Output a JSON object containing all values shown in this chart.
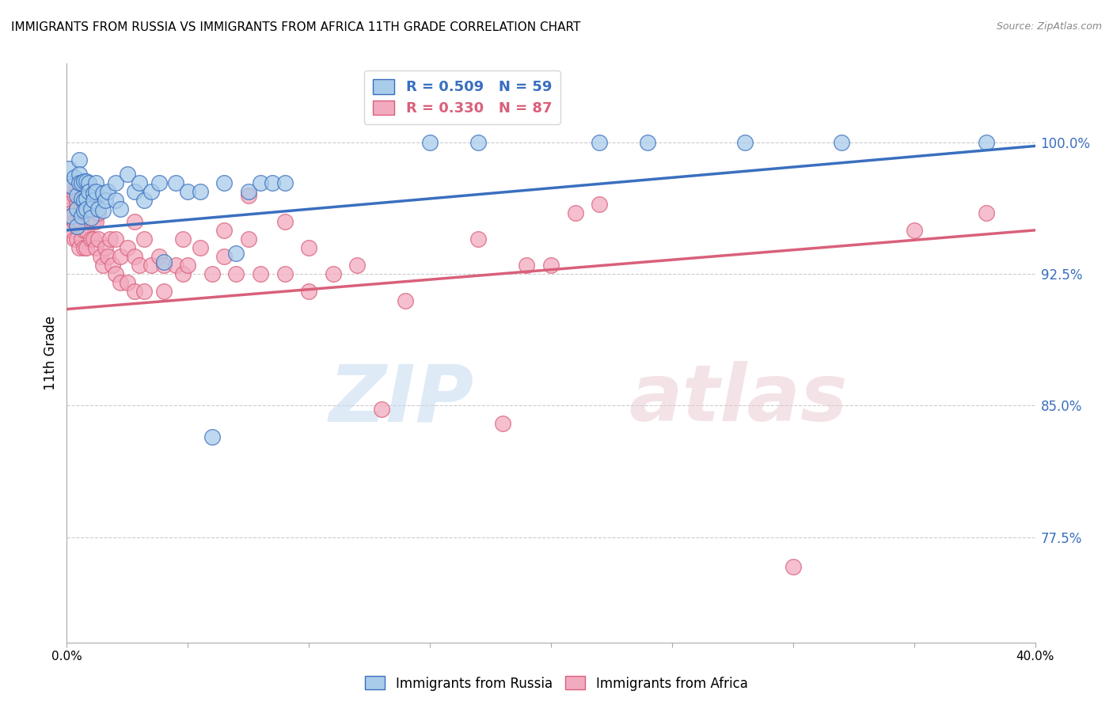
{
  "title": "IMMIGRANTS FROM RUSSIA VS IMMIGRANTS FROM AFRICA 11TH GRADE CORRELATION CHART",
  "source": "Source: ZipAtlas.com",
  "ylabel": "11th Grade",
  "ylabel_ticks": [
    "100.0%",
    "92.5%",
    "85.0%",
    "77.5%"
  ],
  "ylabel_tick_values": [
    1.0,
    0.925,
    0.85,
    0.775
  ],
  "x_min": 0.0,
  "x_max": 0.4,
  "y_min": 0.715,
  "y_max": 1.045,
  "russia_color": "#A8CCEA",
  "africa_color": "#F2AABF",
  "russia_line_color": "#3A6FBF",
  "africa_line_color": "#D9607A",
  "watermark_zip": "ZIP",
  "watermark_atlas": "atlas",
  "russia_scatter": [
    [
      0.001,
      0.985
    ],
    [
      0.002,
      0.975
    ],
    [
      0.002,
      0.958
    ],
    [
      0.003,
      0.98
    ],
    [
      0.004,
      0.97
    ],
    [
      0.004,
      0.962
    ],
    [
      0.004,
      0.952
    ],
    [
      0.005,
      0.99
    ],
    [
      0.005,
      0.982
    ],
    [
      0.005,
      0.977
    ],
    [
      0.006,
      0.977
    ],
    [
      0.006,
      0.968
    ],
    [
      0.006,
      0.958
    ],
    [
      0.007,
      0.978
    ],
    [
      0.007,
      0.967
    ],
    [
      0.007,
      0.961
    ],
    [
      0.008,
      0.978
    ],
    [
      0.008,
      0.968
    ],
    [
      0.008,
      0.962
    ],
    [
      0.009,
      0.977
    ],
    [
      0.009,
      0.972
    ],
    [
      0.01,
      0.962
    ],
    [
      0.01,
      0.957
    ],
    [
      0.011,
      0.971
    ],
    [
      0.011,
      0.967
    ],
    [
      0.012,
      0.977
    ],
    [
      0.012,
      0.972
    ],
    [
      0.013,
      0.962
    ],
    [
      0.015,
      0.971
    ],
    [
      0.015,
      0.961
    ],
    [
      0.016,
      0.967
    ],
    [
      0.017,
      0.972
    ],
    [
      0.02,
      0.977
    ],
    [
      0.02,
      0.967
    ],
    [
      0.022,
      0.962
    ],
    [
      0.025,
      0.982
    ],
    [
      0.028,
      0.972
    ],
    [
      0.03,
      0.977
    ],
    [
      0.032,
      0.967
    ],
    [
      0.035,
      0.972
    ],
    [
      0.038,
      0.977
    ],
    [
      0.04,
      0.932
    ],
    [
      0.045,
      0.977
    ],
    [
      0.05,
      0.972
    ],
    [
      0.055,
      0.972
    ],
    [
      0.06,
      0.832
    ],
    [
      0.065,
      0.977
    ],
    [
      0.07,
      0.937
    ],
    [
      0.075,
      0.972
    ],
    [
      0.08,
      0.977
    ],
    [
      0.085,
      0.977
    ],
    [
      0.09,
      0.977
    ],
    [
      0.15,
      1.0
    ],
    [
      0.17,
      1.0
    ],
    [
      0.22,
      1.0
    ],
    [
      0.24,
      1.0
    ],
    [
      0.28,
      1.0
    ],
    [
      0.32,
      1.0
    ],
    [
      0.38,
      1.0
    ]
  ],
  "africa_scatter": [
    [
      0.001,
      0.97
    ],
    [
      0.001,
      0.965
    ],
    [
      0.002,
      0.975
    ],
    [
      0.002,
      0.96
    ],
    [
      0.002,
      0.95
    ],
    [
      0.003,
      0.97
    ],
    [
      0.003,
      0.96
    ],
    [
      0.003,
      0.955
    ],
    [
      0.003,
      0.945
    ],
    [
      0.004,
      0.975
    ],
    [
      0.004,
      0.965
    ],
    [
      0.004,
      0.955
    ],
    [
      0.004,
      0.945
    ],
    [
      0.005,
      0.97
    ],
    [
      0.005,
      0.96
    ],
    [
      0.005,
      0.955
    ],
    [
      0.005,
      0.94
    ],
    [
      0.006,
      0.965
    ],
    [
      0.006,
      0.955
    ],
    [
      0.006,
      0.945
    ],
    [
      0.007,
      0.96
    ],
    [
      0.007,
      0.95
    ],
    [
      0.007,
      0.94
    ],
    [
      0.008,
      0.96
    ],
    [
      0.008,
      0.95
    ],
    [
      0.008,
      0.94
    ],
    [
      0.009,
      0.955
    ],
    [
      0.01,
      0.965
    ],
    [
      0.01,
      0.945
    ],
    [
      0.011,
      0.955
    ],
    [
      0.011,
      0.945
    ],
    [
      0.012,
      0.955
    ],
    [
      0.012,
      0.94
    ],
    [
      0.013,
      0.96
    ],
    [
      0.013,
      0.945
    ],
    [
      0.014,
      0.935
    ],
    [
      0.015,
      0.93
    ],
    [
      0.016,
      0.94
    ],
    [
      0.017,
      0.935
    ],
    [
      0.018,
      0.945
    ],
    [
      0.019,
      0.93
    ],
    [
      0.02,
      0.945
    ],
    [
      0.02,
      0.925
    ],
    [
      0.022,
      0.935
    ],
    [
      0.022,
      0.92
    ],
    [
      0.025,
      0.94
    ],
    [
      0.025,
      0.92
    ],
    [
      0.028,
      0.955
    ],
    [
      0.028,
      0.935
    ],
    [
      0.028,
      0.915
    ],
    [
      0.03,
      0.93
    ],
    [
      0.032,
      0.945
    ],
    [
      0.032,
      0.915
    ],
    [
      0.035,
      0.93
    ],
    [
      0.038,
      0.935
    ],
    [
      0.04,
      0.93
    ],
    [
      0.04,
      0.915
    ],
    [
      0.045,
      0.93
    ],
    [
      0.048,
      0.945
    ],
    [
      0.048,
      0.925
    ],
    [
      0.05,
      0.93
    ],
    [
      0.055,
      0.94
    ],
    [
      0.06,
      0.925
    ],
    [
      0.065,
      0.95
    ],
    [
      0.065,
      0.935
    ],
    [
      0.07,
      0.925
    ],
    [
      0.075,
      0.97
    ],
    [
      0.075,
      0.945
    ],
    [
      0.08,
      0.925
    ],
    [
      0.09,
      0.955
    ],
    [
      0.09,
      0.925
    ],
    [
      0.1,
      0.94
    ],
    [
      0.1,
      0.915
    ],
    [
      0.11,
      0.925
    ],
    [
      0.12,
      0.93
    ],
    [
      0.13,
      0.848
    ],
    [
      0.14,
      0.91
    ],
    [
      0.17,
      0.945
    ],
    [
      0.18,
      0.84
    ],
    [
      0.19,
      0.93
    ],
    [
      0.2,
      0.93
    ],
    [
      0.21,
      0.96
    ],
    [
      0.22,
      0.965
    ],
    [
      0.3,
      0.758
    ],
    [
      0.35,
      0.95
    ],
    [
      0.38,
      0.96
    ]
  ],
  "russia_trendline_x": [
    0.0,
    0.4
  ],
  "russia_trendline_y": [
    0.95,
    0.998
  ],
  "africa_trendline_x": [
    0.0,
    0.4
  ],
  "africa_trendline_y": [
    0.905,
    0.95
  ]
}
